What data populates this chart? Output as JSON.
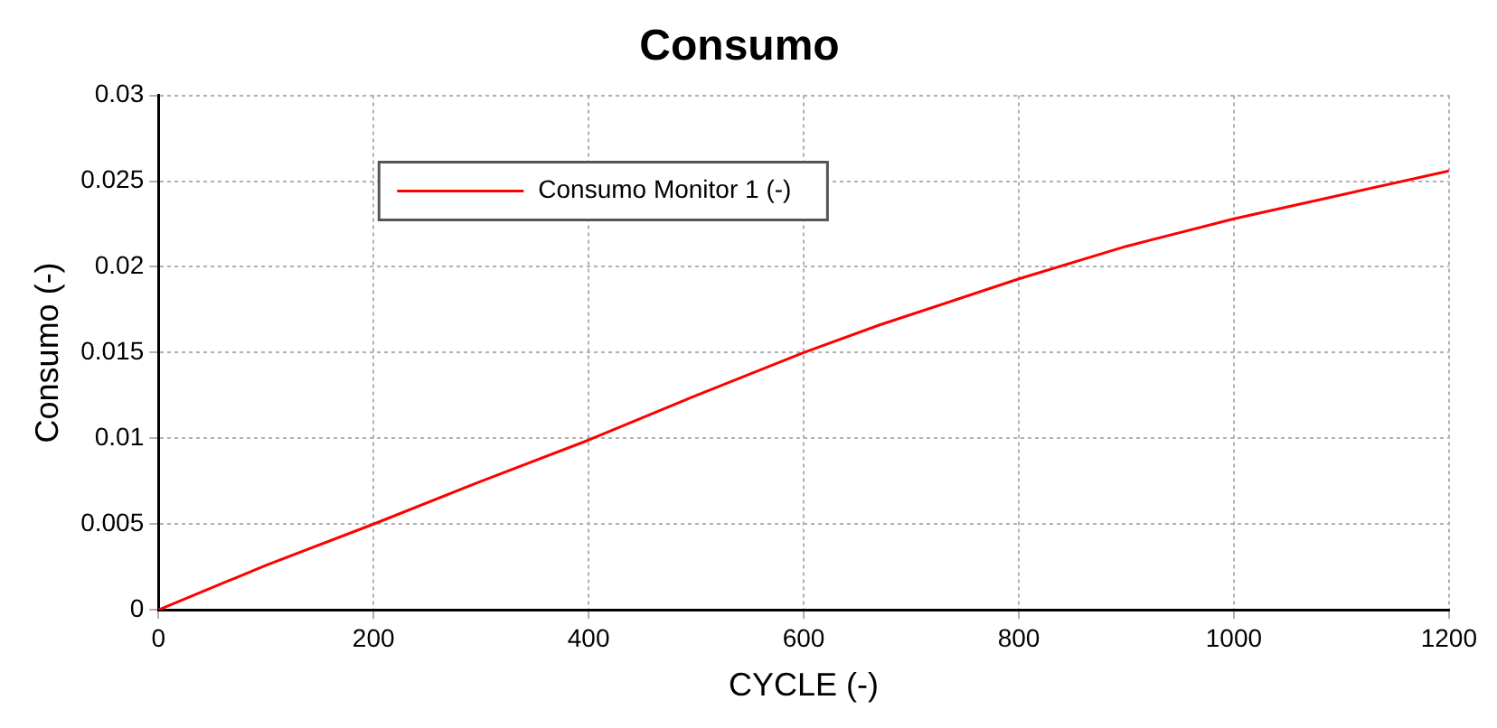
{
  "chart_data": {
    "type": "line",
    "title": "Consumo",
    "xlabel": "CYCLE (-)",
    "ylabel": "Consumo (-)",
    "x": [
      0,
      100,
      200,
      300,
      400,
      500,
      600,
      670,
      800,
      900,
      1000,
      1100,
      1200
    ],
    "series": [
      {
        "name": "Consumo Monitor 1 (-)",
        "color": "#ff0000",
        "values": [
          0,
          0.0026,
          0.005,
          0.0075,
          0.0099,
          0.0125,
          0.015,
          0.0166,
          0.0193,
          0.0212,
          0.0228,
          0.0242,
          0.0256
        ]
      }
    ],
    "xlim": [
      0,
      1200
    ],
    "xticks": [
      0,
      200,
      400,
      600,
      800,
      1000,
      1200
    ],
    "ylim": [
      0,
      0.03
    ],
    "yticks": [
      0,
      0.005,
      0.01,
      0.015,
      0.02,
      0.025,
      0.03
    ],
    "grid": true,
    "legend": "top left",
    "marker": "none",
    "line_style": "solid"
  }
}
